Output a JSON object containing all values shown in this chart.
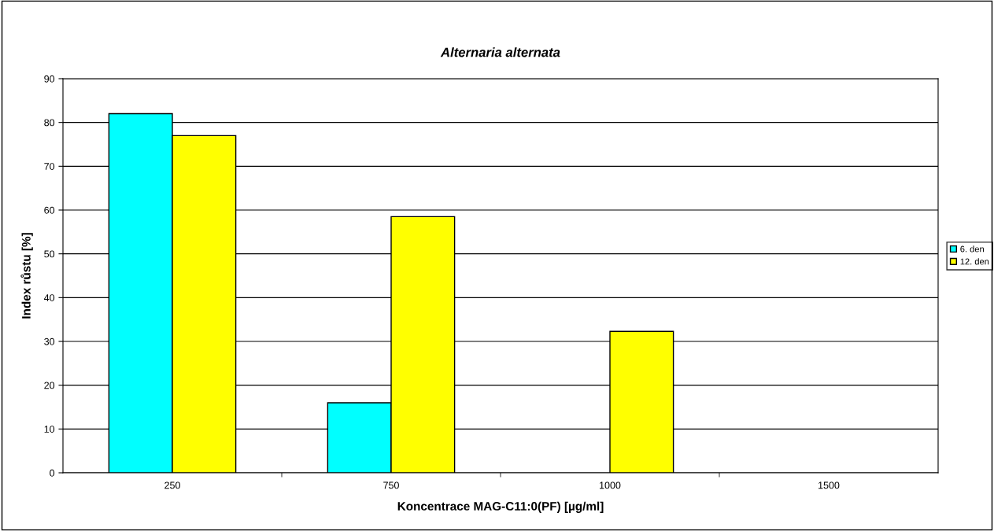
{
  "chart_data": {
    "type": "bar",
    "title": "Alternaria alternata",
    "xlabel": "Koncentrace MAG-C11:0(PF) [µg/ml]",
    "ylabel": "Index růstu [%]",
    "categories": [
      "250",
      "750",
      "1000",
      "1500"
    ],
    "series": [
      {
        "name": "6. den",
        "color": "#00ffff",
        "values": [
          82,
          16,
          null,
          null
        ]
      },
      {
        "name": "12. den",
        "color": "#ffff00",
        "values": [
          77,
          58.5,
          32.3,
          null
        ]
      }
    ],
    "ylim": [
      0,
      90
    ],
    "yticks": [
      0,
      10,
      20,
      30,
      40,
      50,
      60,
      70,
      80,
      90
    ],
    "grid": "y",
    "legend": "right"
  }
}
